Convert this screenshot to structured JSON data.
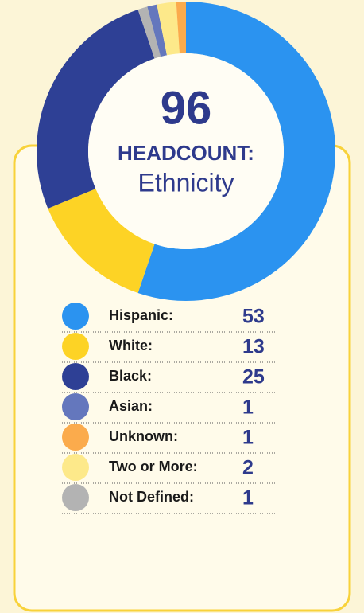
{
  "chart_data": {
    "type": "pie",
    "total": 96,
    "title": "HEADCOUNT:",
    "subtitle": "Ethnicity",
    "categories": [
      "Hispanic:",
      "White:",
      "Black:",
      "Asian:",
      "Unknown:",
      "Two or More:",
      "Not Defined:"
    ],
    "values": [
      53,
      13,
      25,
      1,
      1,
      2,
      1
    ],
    "colors": [
      "#2b93f0",
      "#fdd325",
      "#2e4095",
      "#6477bd",
      "#fbab4c",
      "#fde98a",
      "#b3b3b3"
    ]
  }
}
